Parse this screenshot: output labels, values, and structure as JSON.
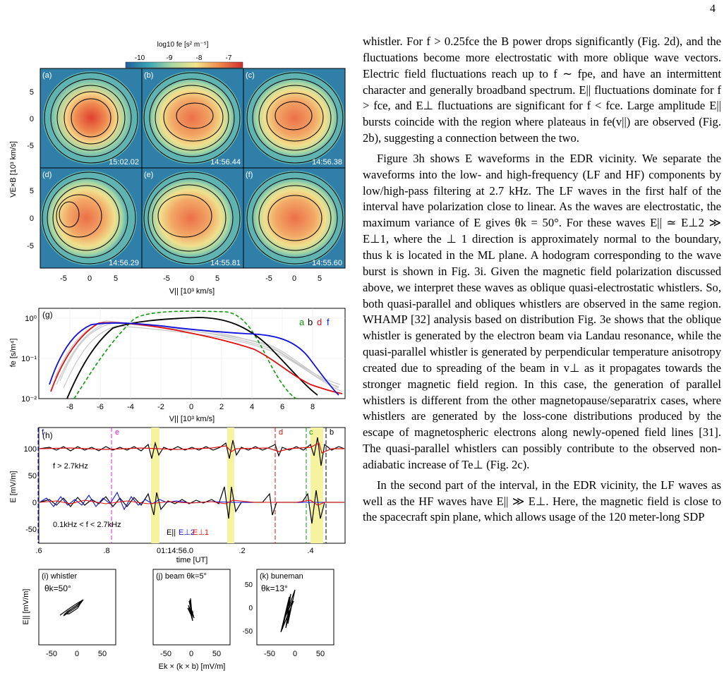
{
  "page_number": "4",
  "figure": {
    "colorbar": {
      "label": "log10 fe [s² m⁻⁵]",
      "ticks": [
        "-10",
        "-9",
        "-8",
        "-7"
      ]
    },
    "distribution_panels": [
      {
        "label": "(a)",
        "time": "15:02.02"
      },
      {
        "label": "(b)",
        "time": "14:56.44"
      },
      {
        "label": "(c)",
        "time": "14:56.38"
      },
      {
        "label": "(d)",
        "time": "14:56.29"
      },
      {
        "label": "(e)",
        "time": "14:55.81"
      },
      {
        "label": "(f)",
        "time": "14:55.60"
      }
    ],
    "dist_ylabel": "VE×B [10³ km/s]",
    "dist_xlabel": "V|| [10³ km/s]",
    "dist_yticks": [
      "5",
      "0",
      "-5"
    ],
    "dist_xticks": [
      "-5",
      "0",
      "5"
    ],
    "panel_g": {
      "label": "(g)",
      "ylabel": "fe [s/m⁴]",
      "xlabel": "V|| [10³ km/s]",
      "yticks": [
        "10⁰",
        "10⁻¹",
        "10⁻²"
      ],
      "xticks": [
        "-8",
        "-6",
        "-4",
        "-2",
        "0",
        "2",
        "4",
        "6",
        "8"
      ],
      "legend": [
        "a",
        "b",
        "d",
        "f"
      ],
      "legend_colors": [
        "#0a9a0a",
        "#000000",
        "#e01010",
        "#1010e0"
      ]
    },
    "panel_h": {
      "label": "(h)",
      "ylabel": "E [mV/m]",
      "xlabel": "time [UT]",
      "yticks": [
        "100",
        "50",
        "0",
        "-50"
      ],
      "xticks": [
        ".6",
        ".8",
        "01:14:56.0",
        ".2",
        ".4"
      ],
      "hf_text": "f > 2.7kHz",
      "lf_text": "0.1kHz < f < 2.7kHz",
      "legend_par": "E||",
      "legend_perp2": "E⊥2",
      "legend_perp1": "E⊥1",
      "markers": [
        "f",
        "e",
        "d",
        "c",
        "b"
      ]
    },
    "hodograms": [
      {
        "label": "(i) whistler",
        "theta": "θk=50°"
      },
      {
        "label": "(j) beam θk=5°",
        "theta": ""
      },
      {
        "label": "(k) buneman",
        "theta": "θk=13°"
      }
    ],
    "hodo_ylabel": "E|| [mV/m]",
    "hodo_xlabel": "Ek × (k × b) [mV/m]",
    "hodo_xticks": [
      "-50",
      "0",
      "50"
    ],
    "hodo_yticks": [
      "50",
      "0",
      "-50"
    ]
  },
  "text": {
    "p1": "whistler. For f > 0.25fce the B power drops significantly (Fig. 2d), and the fluctuations become more electrostatic with more oblique wave vectors. Electric field fluctuations reach up to f ∼ fpe, and have an intermittent character and generally broadband spectrum. E|| fluctuations dominate for f > fce, and E⊥ fluctuations are significant for f < fce. Large amplitude E|| bursts coincide with the region where plateaus in fe(v||) are observed (Fig. 2b), suggesting a connection between the two.",
    "p2": "Figure 3h shows E waveforms in the EDR vicinity. We separate the waveforms into the low- and high-frequency (LF and HF) components by low/high-pass filtering at 2.7 kHz. The LF waves in the first half of the interval have polarization close to linear. As the waves are electrostatic, the maximum variance of E gives θk = 50°. For these waves E|| ≃ E⊥2 ≫ E⊥1, where the ⊥ 1 direction is approximately normal to the boundary, thus k is located in the ML plane. A hodogram corresponding to the wave burst is shown in Fig. 3i. Given the magnetic field polarization discussed above, we interpret these waves as oblique quasi-electrostatic whistlers. So, both quasi-parallel and obliques whistlers are observed in the same region. WHAMP [32] analysis based on distribution Fig. 3e shows that the oblique whistler is generated by the electron beam via Landau resonance, while the quasi-parallel whistler is generated by perpendicular temperature anisotropy created due to spreading of the beam in v⊥ as it propagates towards the stronger magnetic field region. In this case, the generation of parallel whistlers is different from the other magnetopause/separatrix cases, where whistlers are generated by the loss-cone distributions produced by the escape of magnetospheric electrons along newly-opened field lines [31]. The quasi-parallel whistlers can possibly contribute to the observed non-adiabatic increase of Te⊥ (Fig. 2c).",
    "p3": "In the second part of the interval, in the EDR vicinity, the LF waves as well as the HF waves have E|| ≫ E⊥. Here, the magnetic field is close to the spacecraft spin plane, which allows usage of the 120 meter-long SDP"
  }
}
